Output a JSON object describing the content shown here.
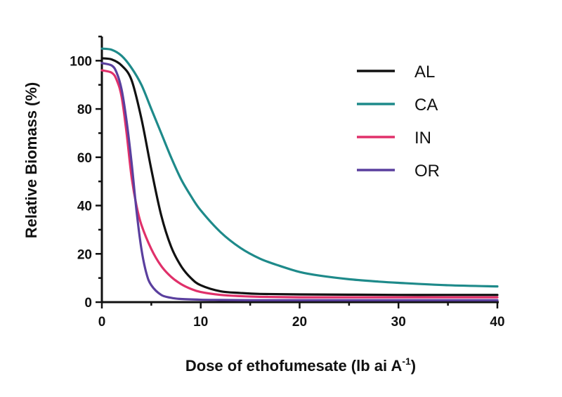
{
  "chart_data": {
    "type": "line",
    "title": "",
    "xlabel": {
      "main": "Dose of ethofumesate (lb ai A",
      "sup": "-1",
      "close": ")"
    },
    "ylabel": "Relative Biomass (%)",
    "xlim": [
      0,
      40
    ],
    "ylim": [
      0,
      110
    ],
    "xticks": [
      0,
      10,
      20,
      30,
      40
    ],
    "yticks": [
      0,
      20,
      40,
      60,
      80,
      100
    ],
    "grid": false,
    "legend_position": "top-right",
    "series": [
      {
        "name": "AL",
        "color": "#111111",
        "x": [
          0,
          1,
          2,
          3,
          4,
          5,
          6,
          7,
          8,
          9,
          10,
          12,
          14,
          16,
          20,
          25,
          30,
          35,
          40
        ],
        "y": [
          101,
          100.5,
          98,
          92,
          76,
          55,
          36,
          23,
          15,
          10,
          7,
          4.5,
          3.8,
          3.4,
          3.2,
          3.1,
          3,
          3,
          3
        ]
      },
      {
        "name": "CA",
        "color": "#1e8a8a",
        "x": [
          0,
          1,
          2,
          3,
          4,
          5,
          6,
          7,
          8,
          9,
          10,
          12,
          14,
          16,
          18,
          20,
          22,
          25,
          28,
          30,
          35,
          40
        ],
        "y": [
          105,
          104.5,
          102,
          97,
          90,
          80,
          70,
          60,
          51,
          44,
          38,
          29,
          22.5,
          18,
          15,
          12.5,
          11,
          9.5,
          8.5,
          8,
          7,
          6.5
        ]
      },
      {
        "name": "IN",
        "color": "#e0306a",
        "x": [
          0,
          1,
          1.5,
          2,
          2.5,
          3,
          3.5,
          4,
          5,
          6,
          7,
          8,
          9,
          10,
          12,
          14,
          16,
          20,
          25,
          30,
          40
        ],
        "y": [
          96,
          95,
          92,
          85,
          70,
          52,
          40,
          32,
          22,
          15,
          10.5,
          7.5,
          5.5,
          4.2,
          3,
          2.5,
          2.2,
          2,
          2,
          2,
          2
        ]
      },
      {
        "name": "OR",
        "color": "#5a3f9e",
        "x": [
          0,
          1,
          1.5,
          2,
          2.5,
          3,
          3.5,
          4,
          4.5,
          5,
          6,
          7,
          8,
          10,
          12,
          15,
          20,
          30,
          40
        ],
        "y": [
          99,
          98,
          95,
          88,
          75,
          58,
          38,
          22,
          12,
          7,
          3,
          1.8,
          1.3,
          1,
          0.9,
          0.8,
          0.8,
          0.8,
          0.8
        ]
      }
    ]
  }
}
